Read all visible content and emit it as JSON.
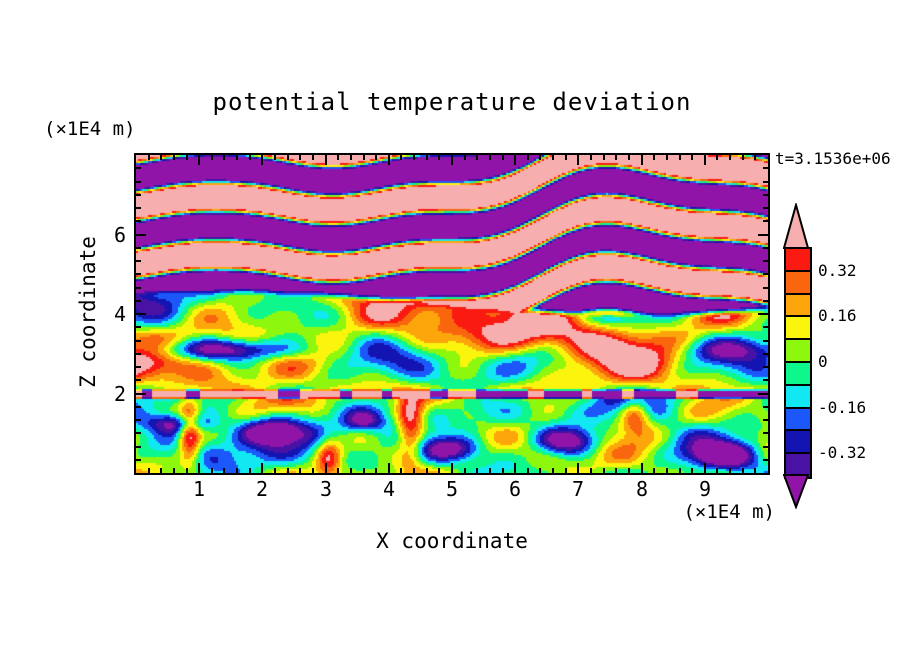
{
  "header": {
    "title": "potential temperature deviation",
    "time_label": "t=3.1536e+06",
    "y_axis_units": "(×1E4 m)",
    "x_axis_units": "(×1E4 m)"
  },
  "axes": {
    "x_label": "X coordinate",
    "y_label": "Z coordinate",
    "x_tick_labels": [
      "1",
      "2",
      "3",
      "4",
      "5",
      "6",
      "7",
      "8",
      "9"
    ],
    "y_tick_labels": [
      "6",
      "4",
      "2"
    ]
  },
  "colorbar_labels": [
    "0.32",
    "0.16",
    "0",
    "-0.16",
    "-0.32"
  ],
  "chart_data": {
    "type": "heatmap",
    "subtype": "filled-contour",
    "title": "potential temperature deviation",
    "xlabel": "X coordinate",
    "ylabel": "Z coordinate",
    "x_units": "(×1E4 m)",
    "y_units": "(×1E4 m)",
    "time_annotation": "t=3.1536e+06",
    "xlim": [
      0,
      10
    ],
    "ylim": [
      0,
      8
    ],
    "x_tick_values": [
      1,
      2,
      3,
      4,
      5,
      6,
      7,
      8,
      9
    ],
    "y_tick_values": [
      2,
      4,
      6
    ],
    "x_minor_step": 0.2,
    "y_minor_step": 0.3333,
    "grid": false,
    "legend_position": "right-colorbar",
    "colorbar": {
      "orientation": "vertical",
      "labels": [
        {
          "text": "0.32",
          "value": 0.32
        },
        {
          "text": "0.16",
          "value": 0.16
        },
        {
          "text": "0",
          "value": 0.0
        },
        {
          "text": "-0.16",
          "value": -0.16
        },
        {
          "text": "-0.32",
          "value": -0.32
        }
      ],
      "boundaries": [
        -0.4,
        -0.32,
        -0.24,
        -0.16,
        -0.08,
        0.0,
        0.08,
        0.16,
        0.24,
        0.32,
        0.4
      ],
      "colors_ascending": [
        "#9114A8",
        "#4A11A5",
        "#1414B2",
        "#1C57F9",
        "#11E8F2",
        "#0EF78D",
        "#8DF70E",
        "#FBF50D",
        "#FCA60B",
        "#F9660D",
        "#FA1A12",
        "#F7AEAE"
      ],
      "under_arrow_color": "#9114A8",
      "over_arrow_color": "#F7AEAE"
    },
    "field_description": "Turbulent stratified field: upper region (z>4.3e4 m) large interleaved pink (>0.40) and dark-purple (<-0.40) wavy tongues; middle region (2.1-4.3e4 m) mottled yellow/green/orange with dark purple streaks near z=3e4 m and warm red/pink-cored blobs near z=3.4e4 m; thin pink/purple speckled band at z=2e4 m (pink on left half, purple on right half); lower region (<1.9e4 m) green/cyan swirls with deep blue vortices and narrow orange upwelling plumes.",
    "field_model": {
      "top": {
        "z_boundary": 4.3,
        "boundary_wave": [
          0.3,
          0.47,
          1.0
        ],
        "band_period": 1.45,
        "band_offset": 0.45,
        "amp": 0.62,
        "sharpness": 2.6,
        "waves": [
          [
            0.38,
            0.58,
            0.4
          ],
          [
            0.26,
            1.15,
            2.1
          ],
          [
            0.14,
            2.3,
            0.8
          ],
          [
            0.5,
            0.21,
            1.9
          ]
        ],
        "topleft_pink": [
          0.6,
          0.5,
          1.0
        ]
      },
      "mid": {
        "base": 0.09,
        "amp": 0.62,
        "streak": [
          3.1,
          0.28,
          0.55,
          0.75,
          0.55
        ],
        "warm": [
          3.45,
          0.55,
          0.5,
          0.62,
          -2.1
        ]
      },
      "band": {
        "z_range": [
          1.88,
          2.12
        ],
        "pos_val": 0.5,
        "neg_val": -0.5,
        "mask": [
          0.52,
          0.35
        ],
        "speck": [
          6.5,
          1.7,
          0.72
        ]
      },
      "bottom": {
        "base": -0.02,
        "amp": 0.38,
        "dips": [
          [
            2.15,
            1.05,
            0.45,
            0.3,
            0.5
          ],
          [
            5.0,
            0.6,
            0.5,
            0.3,
            0.45
          ],
          [
            6.85,
            0.8,
            0.5,
            0.35,
            0.6
          ],
          [
            9.3,
            0.45,
            0.5,
            0.3,
            0.5
          ],
          [
            3.6,
            1.3,
            0.3,
            0.25,
            0.35
          ],
          [
            0.7,
            1.25,
            0.5,
            0.25,
            0.45
          ]
        ],
        "plumes": [
          [
            0.85,
            1.0,
            0.18,
            0.8,
            0.55
          ],
          [
            4.35,
            1.2,
            0.22,
            0.9,
            0.5
          ],
          [
            3.05,
            0.4,
            0.2,
            0.5,
            0.4
          ],
          [
            7.9,
            1.5,
            0.25,
            0.45,
            0.45
          ]
        ]
      }
    }
  }
}
